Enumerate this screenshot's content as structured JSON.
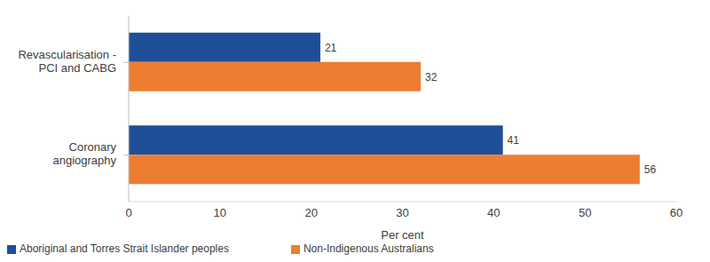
{
  "chart_data": {
    "type": "bar",
    "orientation": "horizontal",
    "categories": [
      "Revascularisation - PCI and CABG",
      "Coronary angiography"
    ],
    "series": [
      {
        "name": "Aboriginal and Torres Strait Islander peoples",
        "color": "#1f4e99",
        "values": [
          21,
          41
        ]
      },
      {
        "name": "Non-Indigenous Australians",
        "color": "#ed7d31",
        "values": [
          32,
          56
        ]
      }
    ],
    "x_label": "Per cent",
    "xlim": [
      0,
      60
    ],
    "xticks": [
      0,
      10,
      20,
      30,
      40,
      50,
      60
    ],
    "data_labels": true,
    "legend": "bottom",
    "grid": false
  }
}
